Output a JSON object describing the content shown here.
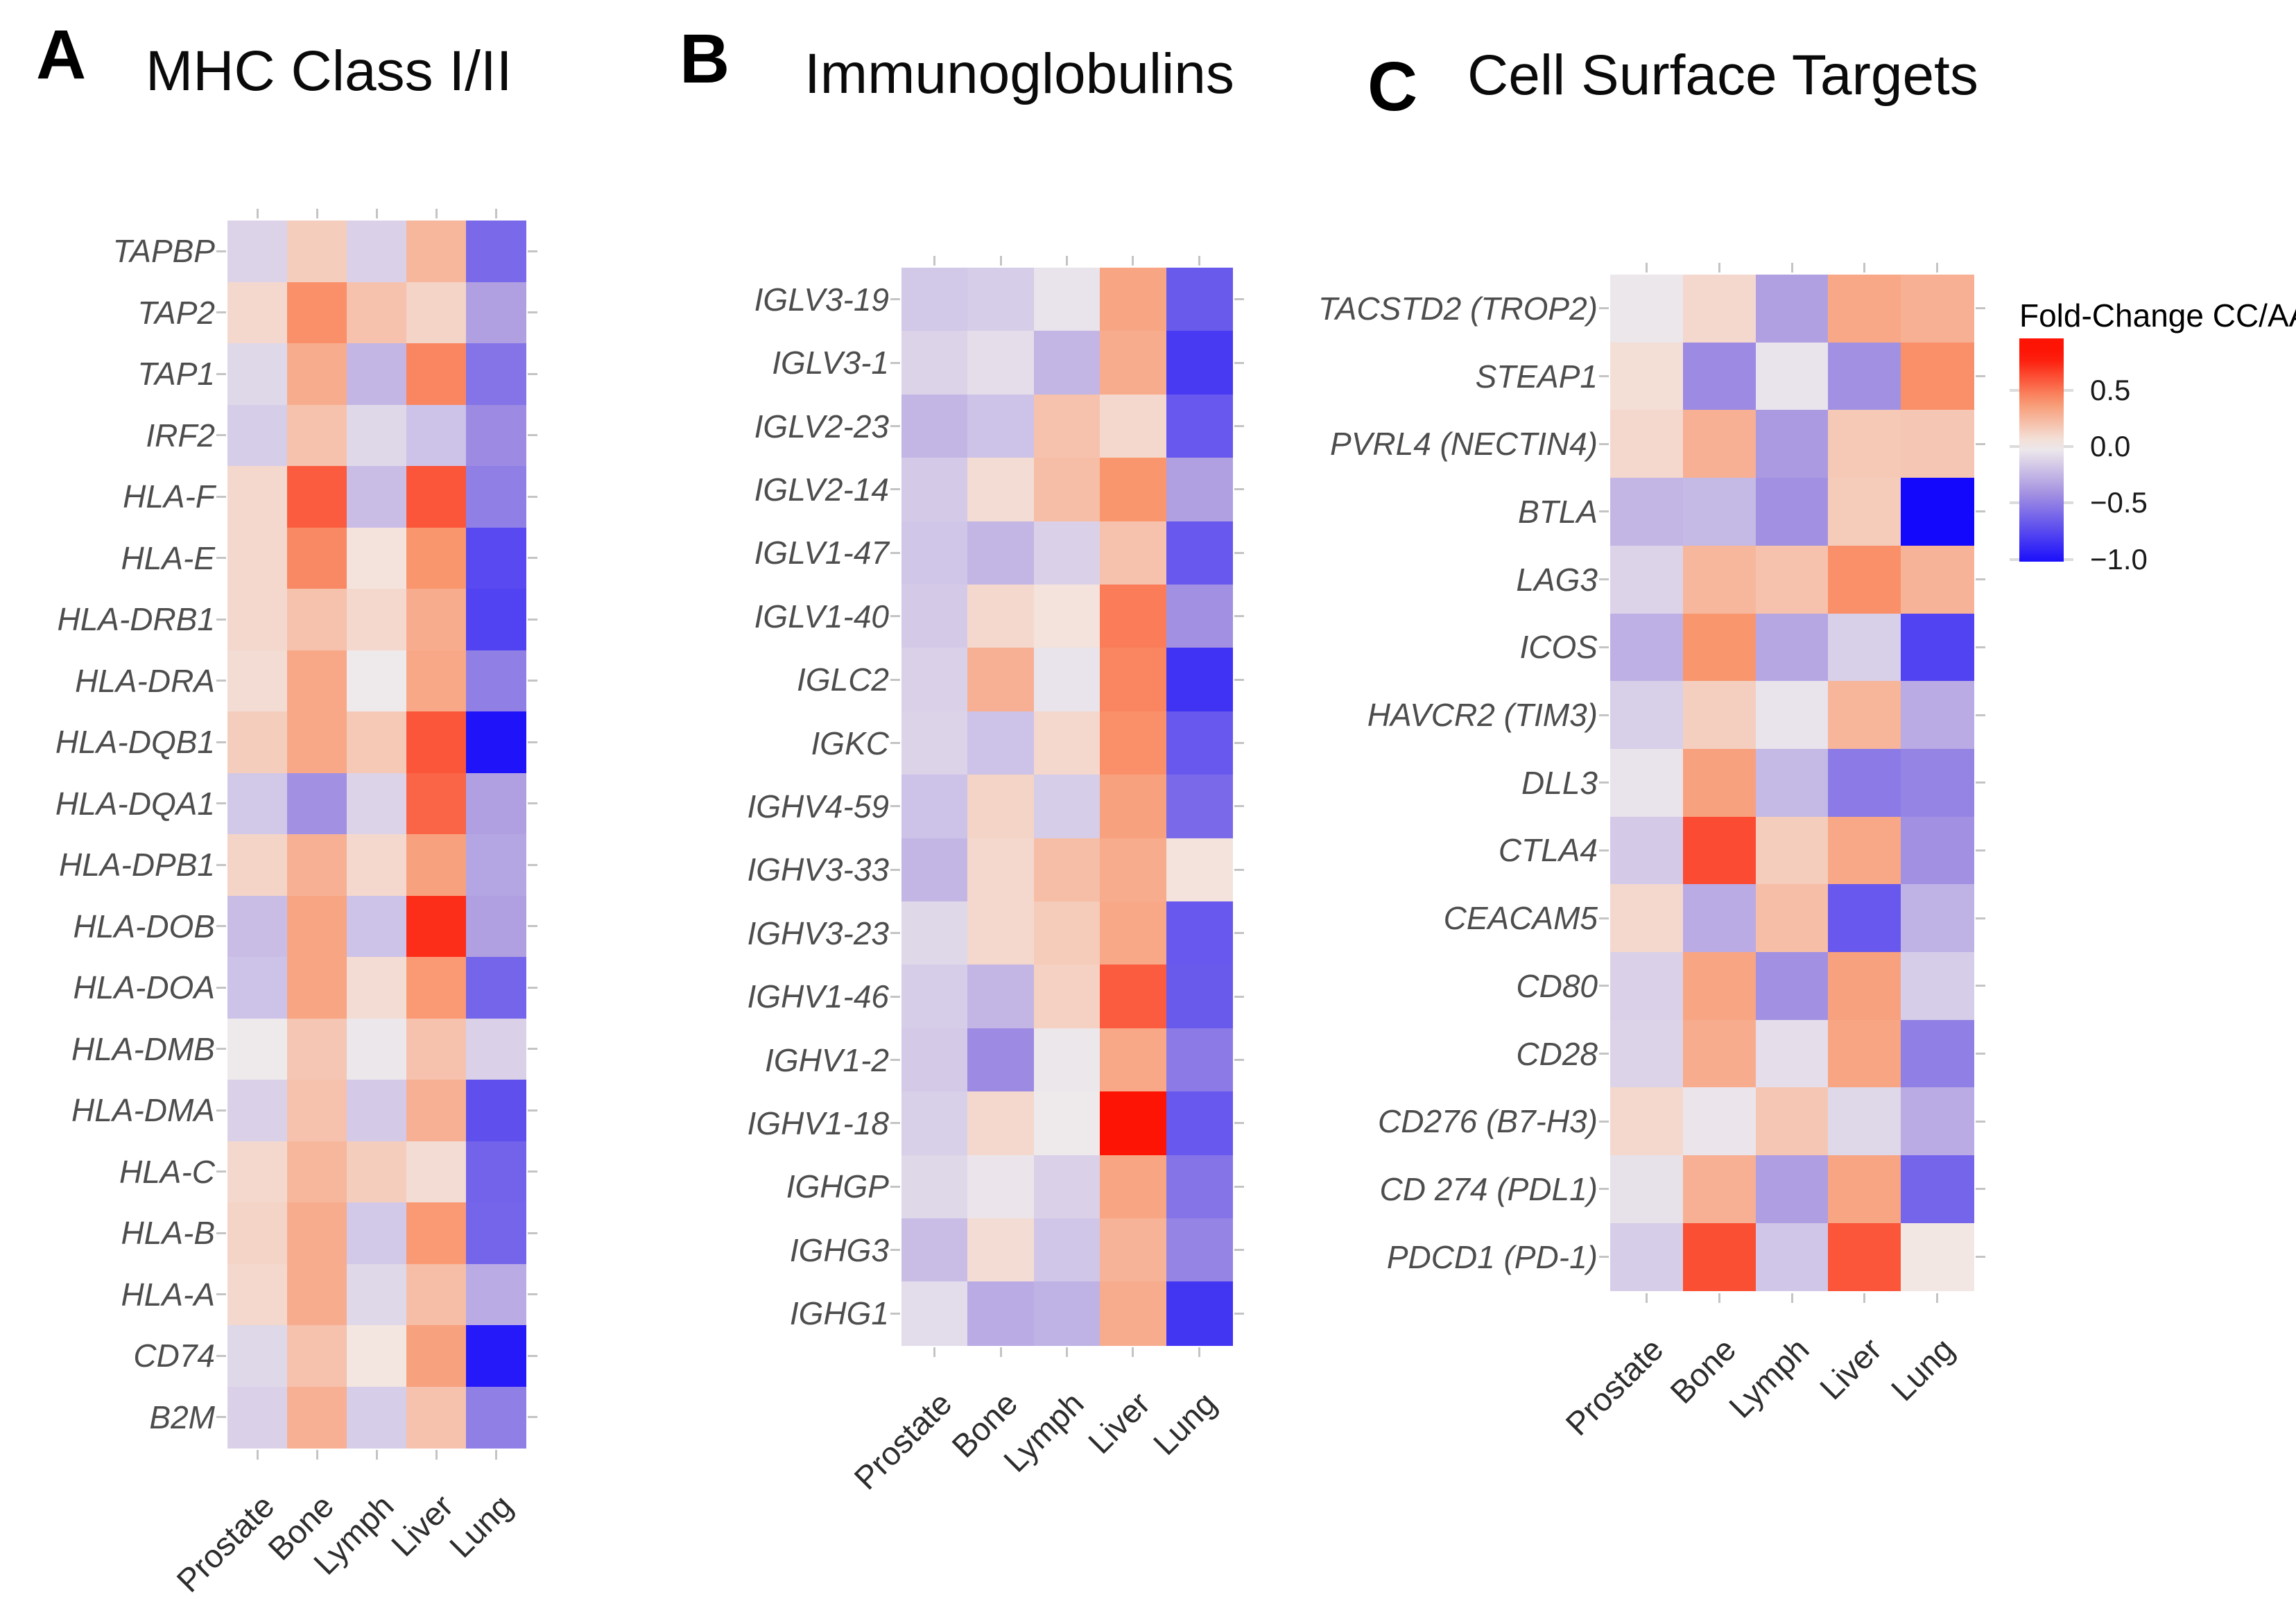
{
  "chart_data": {
    "type": "heatmap",
    "description_columns": [
      "Prostate",
      "Bone",
      "Lymph",
      "Liver",
      "Lung"
    ],
    "panels": [
      {
        "letter": "A",
        "title": "MHC Class I/II",
        "columns": [
          "Prostate",
          "Bone",
          "Lymph",
          "Liver",
          "Lung"
        ],
        "rows": [
          "TAPBP",
          "TAP2",
          "TAP1",
          "IRF2",
          "HLA-F",
          "HLA-E",
          "HLA-DRB1",
          "HLA-DRA",
          "HLA-DQB1",
          "HLA-DQA1",
          "HLA-DPB1",
          "HLA-DOB",
          "HLA-DOA",
          "HLA-DMB",
          "HLA-DMA",
          "HLA-C",
          "HLA-B",
          "HLA-A",
          "CD74",
          "B2M"
        ],
        "values": [
          [
            -0.12,
            0.15,
            -0.13,
            0.25,
            -0.6
          ],
          [
            0.1,
            0.42,
            0.2,
            0.12,
            -0.35
          ],
          [
            -0.1,
            0.3,
            -0.25,
            0.45,
            -0.55
          ],
          [
            -0.15,
            0.2,
            -0.1,
            -0.2,
            -0.45
          ],
          [
            0.1,
            0.58,
            -0.22,
            0.6,
            -0.5
          ],
          [
            0.1,
            0.44,
            0.05,
            0.4,
            -0.75
          ],
          [
            0.1,
            0.2,
            0.1,
            0.3,
            -0.78
          ],
          [
            0.08,
            0.32,
            -0.02,
            0.32,
            -0.5
          ],
          [
            0.15,
            0.32,
            0.17,
            0.6,
            -1.0
          ],
          [
            -0.17,
            -0.42,
            -0.12,
            0.55,
            -0.35
          ],
          [
            0.12,
            0.28,
            0.1,
            0.35,
            -0.33
          ],
          [
            -0.22,
            0.33,
            -0.2,
            0.72,
            -0.35
          ],
          [
            -0.2,
            0.33,
            0.08,
            0.38,
            -0.62
          ],
          [
            -0.02,
            0.18,
            -0.03,
            0.2,
            -0.13
          ],
          [
            -0.13,
            0.2,
            -0.16,
            0.28,
            -0.72
          ],
          [
            0.1,
            0.25,
            0.15,
            0.08,
            -0.63
          ],
          [
            0.12,
            0.3,
            -0.17,
            0.38,
            -0.62
          ],
          [
            0.1,
            0.3,
            -0.1,
            0.22,
            -0.3
          ],
          [
            -0.1,
            0.2,
            0.04,
            0.35,
            -0.97
          ],
          [
            -0.13,
            0.28,
            -0.15,
            0.2,
            -0.5
          ]
        ]
      },
      {
        "letter": "B",
        "title": "Immunoglobulins",
        "columns": [
          "Prostate",
          "Bone",
          "Lymph",
          "Liver",
          "Lung"
        ],
        "rows": [
          "IGLV3-19",
          "IGLV3-1",
          "IGLV2-23",
          "IGLV2-14",
          "IGLV1-47",
          "IGLV1-40",
          "IGLC2",
          "IGKC",
          "IGHV4-59",
          "IGHV3-33",
          "IGHV3-23",
          "IGHV1-46",
          "IGHV1-2",
          "IGHV1-18",
          "IGHGP",
          "IGHG3",
          "IGHG1"
        ],
        "values": [
          [
            -0.17,
            -0.15,
            -0.05,
            0.33,
            -0.67
          ],
          [
            -0.12,
            -0.07,
            -0.25,
            0.3,
            -0.82
          ],
          [
            -0.25,
            -0.2,
            0.2,
            0.1,
            -0.68
          ],
          [
            -0.16,
            0.08,
            0.22,
            0.4,
            -0.35
          ],
          [
            -0.18,
            -0.25,
            -0.13,
            0.2,
            -0.68
          ],
          [
            -0.16,
            0.1,
            0.05,
            0.48,
            -0.42
          ],
          [
            -0.13,
            0.28,
            -0.05,
            0.45,
            -0.85
          ],
          [
            -0.12,
            -0.2,
            0.1,
            0.42,
            -0.68
          ],
          [
            -0.2,
            0.12,
            -0.15,
            0.35,
            -0.6
          ],
          [
            -0.25,
            0.1,
            0.22,
            0.3,
            0.05
          ],
          [
            -0.1,
            0.1,
            0.16,
            0.32,
            -0.68
          ],
          [
            -0.15,
            -0.25,
            0.13,
            0.58,
            -0.67
          ],
          [
            -0.16,
            -0.45,
            -0.03,
            0.32,
            -0.52
          ],
          [
            -0.14,
            0.1,
            -0.02,
            0.8,
            -0.68
          ],
          [
            -0.1,
            -0.04,
            -0.13,
            0.33,
            -0.55
          ],
          [
            -0.22,
            0.08,
            -0.18,
            0.27,
            -0.48
          ],
          [
            -0.08,
            -0.3,
            -0.27,
            0.3,
            -0.84
          ]
        ]
      },
      {
        "letter": "C",
        "title": "Cell Surface Targets",
        "columns": [
          "Prostate",
          "Bone",
          "Lymph",
          "Liver",
          "Lung"
        ],
        "rows": [
          "TACSTD2 (TROP2)",
          "STEAP1",
          "PVRL4 (NECTIN4)",
          "BTLA",
          "LAG3",
          "ICOS",
          "HAVCR2 (TIM3)",
          "DLL3",
          "CTLA4",
          "CEACAM5",
          "CD80",
          "CD28",
          "CD276 (B7-H3)",
          "CD 274 (PDL1)",
          "PDCD1 (PD-1)"
        ],
        "values": [
          [
            -0.03,
            0.1,
            -0.35,
            0.32,
            0.28
          ],
          [
            0.07,
            -0.45,
            -0.05,
            -0.42,
            0.42
          ],
          [
            0.1,
            0.28,
            -0.38,
            0.17,
            0.18
          ],
          [
            -0.25,
            -0.24,
            -0.42,
            0.16,
            -1.05
          ],
          [
            -0.12,
            0.25,
            0.2,
            0.42,
            0.27
          ],
          [
            -0.28,
            0.4,
            -0.32,
            -0.14,
            -0.78
          ],
          [
            -0.14,
            0.14,
            -0.05,
            0.26,
            -0.3
          ],
          [
            -0.05,
            0.35,
            -0.24,
            -0.52,
            -0.48
          ],
          [
            -0.16,
            0.63,
            0.15,
            0.32,
            -0.42
          ],
          [
            0.1,
            -0.3,
            0.22,
            -0.68,
            -0.27
          ],
          [
            -0.13,
            0.33,
            -0.42,
            0.35,
            -0.15
          ],
          [
            -0.12,
            0.3,
            -0.07,
            0.33,
            -0.5
          ],
          [
            0.1,
            -0.04,
            0.18,
            -0.1,
            -0.3
          ],
          [
            -0.06,
            0.28,
            -0.36,
            0.33,
            -0.62
          ],
          [
            -0.15,
            0.62,
            -0.18,
            0.6,
            0.03
          ]
        ]
      }
    ],
    "colorbar": {
      "title": "Fold-Change CC/AA",
      "ticks": [
        {
          "label": "0.5",
          "value": 0.5
        },
        {
          "label": "0.0",
          "value": 0.0
        },
        {
          "label": "−0.5",
          "value": -0.5
        },
        {
          "label": "−1.0",
          "value": -1.0
        }
      ],
      "domain_top": 0.96,
      "domain_bottom": -1.02,
      "color_positive_max": "#fd1405",
      "color_zero": "#f2eeec",
      "color_negative_max": "#1408fc"
    }
  }
}
